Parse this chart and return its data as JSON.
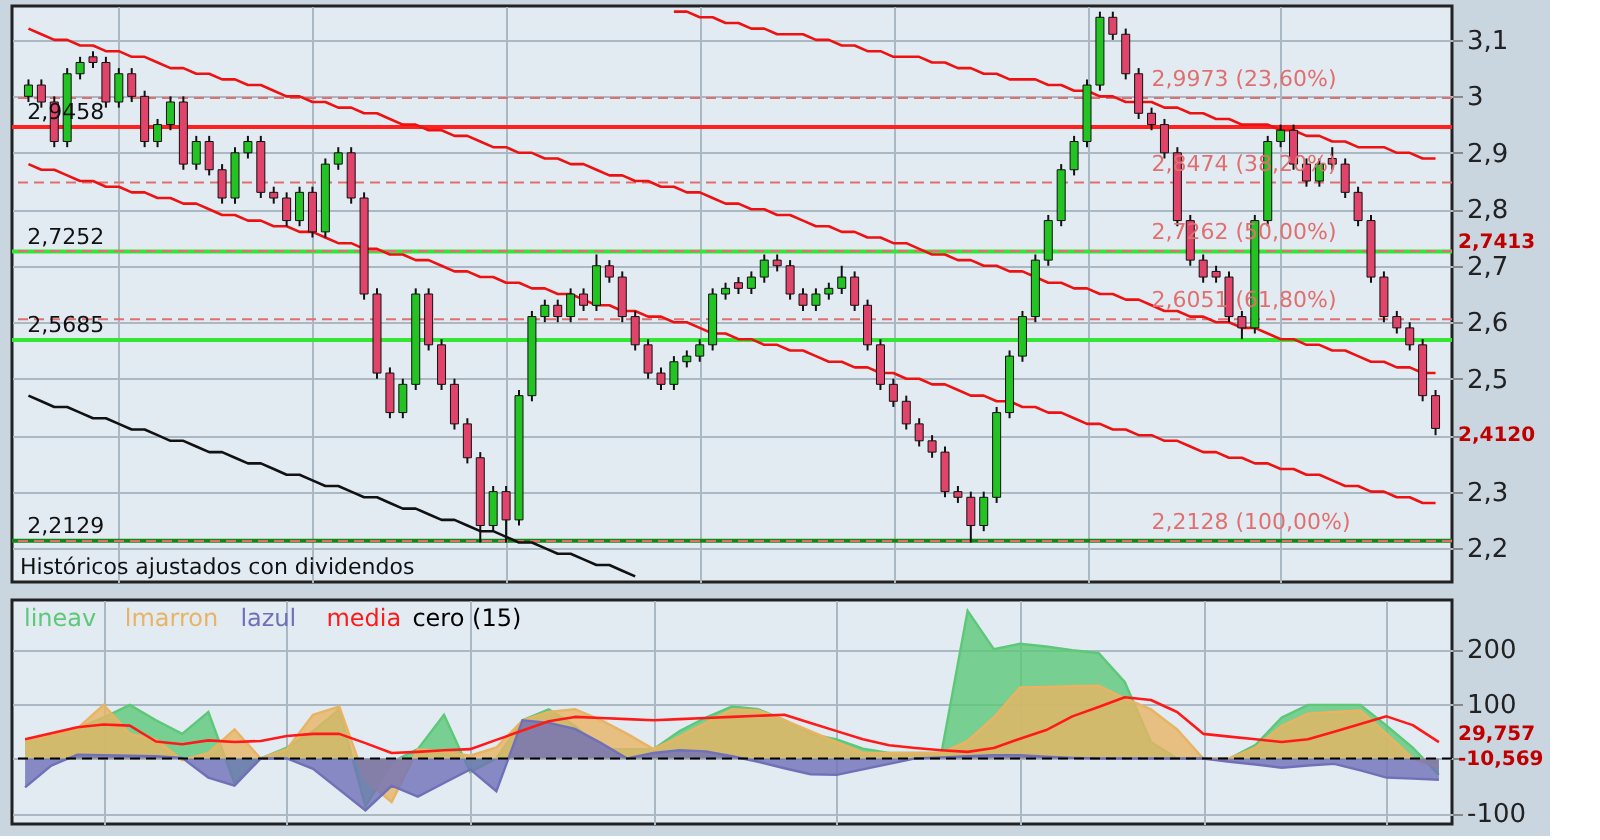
{
  "chart_data": [
    {
      "type": "candlestick",
      "tick_labels": "y",
      "grid": true,
      "categories": [
        null,
        null,
        null,
        null,
        null,
        null,
        null,
        null,
        null,
        null,
        null,
        null,
        null,
        null,
        null,
        null,
        null,
        null,
        null,
        null,
        null,
        null,
        null,
        null,
        null,
        null,
        null,
        null,
        null,
        null,
        null,
        null,
        null,
        null,
        null,
        null,
        null,
        null,
        null,
        null,
        null,
        null,
        null,
        null,
        null,
        null,
        null,
        null,
        null,
        null,
        null,
        null,
        null,
        null,
        null,
        null,
        null,
        null,
        null,
        null,
        null,
        null,
        null,
        null,
        null,
        null,
        null,
        null,
        null,
        null,
        null,
        null,
        null,
        null,
        null,
        null,
        null,
        null,
        null,
        null,
        null,
        null,
        null,
        null,
        null,
        null,
        null,
        null,
        null,
        null,
        null,
        null,
        null,
        null,
        null,
        null,
        null,
        null,
        null,
        null,
        null,
        null,
        null,
        null,
        null,
        null,
        null,
        null,
        null,
        null
      ],
      "ohlc": [
        [
          3.0,
          3.03,
          2.99,
          3.02
        ],
        [
          3.02,
          3.03,
          2.98,
          2.99
        ],
        [
          2.99,
          3.0,
          2.91,
          2.92
        ],
        [
          2.92,
          3.05,
          2.91,
          3.04
        ],
        [
          3.04,
          3.07,
          3.03,
          3.06
        ],
        [
          3.07,
          3.08,
          3.05,
          3.06
        ],
        [
          3.06,
          3.07,
          2.98,
          2.99
        ],
        [
          2.99,
          3.05,
          2.98,
          3.04
        ],
        [
          3.04,
          3.05,
          2.99,
          3.0
        ],
        [
          3.0,
          3.01,
          2.91,
          2.92
        ],
        [
          2.92,
          2.96,
          2.91,
          2.95
        ],
        [
          2.95,
          3.0,
          2.94,
          2.99
        ],
        [
          2.99,
          3.0,
          2.87,
          2.88
        ],
        [
          2.88,
          2.93,
          2.87,
          2.92
        ],
        [
          2.92,
          2.93,
          2.86,
          2.87
        ],
        [
          2.87,
          2.88,
          2.81,
          2.82
        ],
        [
          2.82,
          2.91,
          2.81,
          2.9
        ],
        [
          2.9,
          2.93,
          2.89,
          2.92
        ],
        [
          2.92,
          2.93,
          2.82,
          2.83
        ],
        [
          2.83,
          2.84,
          2.81,
          2.82
        ],
        [
          2.82,
          2.83,
          2.77,
          2.78
        ],
        [
          2.78,
          2.84,
          2.77,
          2.83
        ],
        [
          2.83,
          2.84,
          2.75,
          2.76
        ],
        [
          2.76,
          2.89,
          2.75,
          2.88
        ],
        [
          2.88,
          2.91,
          2.87,
          2.9
        ],
        [
          2.9,
          2.91,
          2.81,
          2.82
        ],
        [
          2.82,
          2.83,
          2.64,
          2.65
        ],
        [
          2.65,
          2.66,
          2.5,
          2.51
        ],
        [
          2.51,
          2.52,
          2.43,
          2.44
        ],
        [
          2.44,
          2.5,
          2.43,
          2.49
        ],
        [
          2.49,
          2.66,
          2.48,
          2.65
        ],
        [
          2.65,
          2.66,
          2.55,
          2.56
        ],
        [
          2.56,
          2.57,
          2.48,
          2.49
        ],
        [
          2.49,
          2.5,
          2.41,
          2.42
        ],
        [
          2.42,
          2.43,
          2.35,
          2.36
        ],
        [
          2.36,
          2.37,
          2.21,
          2.24
        ],
        [
          2.24,
          2.31,
          2.23,
          2.3
        ],
        [
          2.3,
          2.31,
          2.21,
          2.25
        ],
        [
          2.25,
          2.48,
          2.24,
          2.47
        ],
        [
          2.47,
          2.62,
          2.46,
          2.61
        ],
        [
          2.61,
          2.64,
          2.6,
          2.63
        ],
        [
          2.63,
          2.64,
          2.6,
          2.61
        ],
        [
          2.61,
          2.66,
          2.6,
          2.65
        ],
        [
          2.65,
          2.66,
          2.62,
          2.63
        ],
        [
          2.63,
          2.72,
          2.62,
          2.7
        ],
        [
          2.7,
          2.71,
          2.67,
          2.68
        ],
        [
          2.68,
          2.69,
          2.6,
          2.61
        ],
        [
          2.61,
          2.62,
          2.55,
          2.56
        ],
        [
          2.56,
          2.57,
          2.5,
          2.51
        ],
        [
          2.51,
          2.52,
          2.48,
          2.49
        ],
        [
          2.49,
          2.54,
          2.48,
          2.53
        ],
        [
          2.53,
          2.55,
          2.52,
          2.54
        ],
        [
          2.54,
          2.57,
          2.53,
          2.56
        ],
        [
          2.56,
          2.66,
          2.55,
          2.65
        ],
        [
          2.65,
          2.67,
          2.64,
          2.66
        ],
        [
          2.67,
          2.68,
          2.65,
          2.66
        ],
        [
          2.66,
          2.69,
          2.65,
          2.68
        ],
        [
          2.68,
          2.72,
          2.67,
          2.71
        ],
        [
          2.71,
          2.72,
          2.69,
          2.7
        ],
        [
          2.7,
          2.71,
          2.64,
          2.65
        ],
        [
          2.65,
          2.66,
          2.62,
          2.63
        ],
        [
          2.63,
          2.66,
          2.62,
          2.65
        ],
        [
          2.65,
          2.67,
          2.64,
          2.66
        ],
        [
          2.66,
          2.7,
          2.65,
          2.68
        ],
        [
          2.68,
          2.69,
          2.62,
          2.63
        ],
        [
          2.63,
          2.64,
          2.55,
          2.56
        ],
        [
          2.56,
          2.57,
          2.48,
          2.49
        ],
        [
          2.49,
          2.5,
          2.45,
          2.46
        ],
        [
          2.46,
          2.47,
          2.41,
          2.42
        ],
        [
          2.42,
          2.43,
          2.38,
          2.39
        ],
        [
          2.39,
          2.4,
          2.36,
          2.37
        ],
        [
          2.37,
          2.38,
          2.29,
          2.3
        ],
        [
          2.3,
          2.31,
          2.28,
          2.29
        ],
        [
          2.29,
          2.3,
          2.21,
          2.24
        ],
        [
          2.24,
          2.3,
          2.23,
          2.29
        ],
        [
          2.29,
          2.45,
          2.28,
          2.44
        ],
        [
          2.44,
          2.55,
          2.43,
          2.54
        ],
        [
          2.54,
          2.62,
          2.53,
          2.61
        ],
        [
          2.61,
          2.72,
          2.6,
          2.71
        ],
        [
          2.71,
          2.79,
          2.7,
          2.78
        ],
        [
          2.78,
          2.88,
          2.77,
          2.87
        ],
        [
          2.87,
          2.93,
          2.86,
          2.92
        ],
        [
          2.92,
          3.03,
          2.91,
          3.02
        ],
        [
          3.02,
          3.15,
          3.01,
          3.14
        ],
        [
          3.14,
          3.15,
          3.1,
          3.11
        ],
        [
          3.11,
          3.12,
          3.03,
          3.04
        ],
        [
          3.04,
          3.05,
          2.96,
          2.97
        ],
        [
          2.97,
          2.98,
          2.94,
          2.95
        ],
        [
          2.95,
          2.96,
          2.89,
          2.9
        ],
        [
          2.9,
          2.91,
          2.77,
          2.78
        ],
        [
          2.78,
          2.79,
          2.7,
          2.71
        ],
        [
          2.71,
          2.72,
          2.67,
          2.68
        ],
        [
          2.69,
          2.7,
          2.67,
          2.68
        ],
        [
          2.68,
          2.69,
          2.6,
          2.61
        ],
        [
          2.61,
          2.62,
          2.57,
          2.59
        ],
        [
          2.59,
          2.79,
          2.58,
          2.78
        ],
        [
          2.78,
          2.93,
          2.77,
          2.92
        ],
        [
          2.92,
          2.95,
          2.91,
          2.94
        ],
        [
          2.94,
          2.95,
          2.87,
          2.88
        ],
        [
          2.88,
          2.89,
          2.84,
          2.85
        ],
        [
          2.85,
          2.89,
          2.84,
          2.88
        ],
        [
          2.89,
          2.91,
          2.87,
          2.88
        ],
        [
          2.88,
          2.89,
          2.82,
          2.83
        ],
        [
          2.83,
          2.84,
          2.77,
          2.78
        ],
        [
          2.78,
          2.79,
          2.67,
          2.68
        ],
        [
          2.68,
          2.69,
          2.6,
          2.61
        ],
        [
          2.61,
          2.62,
          2.58,
          2.59
        ],
        [
          2.59,
          2.6,
          2.55,
          2.56
        ],
        [
          2.56,
          2.57,
          2.46,
          2.47
        ],
        [
          2.47,
          2.48,
          2.4,
          2.412
        ]
      ],
      "colors": [
        "#22c322",
        "#e0446a",
        "#e0446a",
        "#22c322",
        "#22c322",
        "#e0446a",
        "#e0446a",
        "#22c322",
        "#e0446a",
        "#e0446a",
        "#22c322",
        "#22c322",
        "#e0446a",
        "#22c322",
        "#e0446a",
        "#e0446a",
        "#22c322",
        "#22c322",
        "#e0446a",
        "#e0446a",
        "#e0446a",
        "#22c322",
        "#e0446a",
        "#22c322",
        "#22c322",
        "#e0446a",
        "#e0446a",
        "#e0446a",
        "#e0446a",
        "#22c322",
        "#22c322",
        "#e0446a",
        "#e0446a",
        "#e0446a",
        "#e0446a",
        "#e0446a",
        "#22c322",
        "#e0446a",
        "#22c322",
        "#22c322",
        "#22c322",
        "#e0446a",
        "#22c322",
        "#e0446a",
        "#22c322",
        "#e0446a",
        "#e0446a",
        "#e0446a",
        "#e0446a",
        "#e0446a",
        "#22c322",
        "#22c322",
        "#22c322",
        "#22c322",
        "#22c322",
        "#e0446a",
        "#22c322",
        "#22c322",
        "#e0446a",
        "#e0446a",
        "#e0446a",
        "#22c322",
        "#22c322",
        "#22c322",
        "#e0446a",
        "#e0446a",
        "#e0446a",
        "#e0446a",
        "#e0446a",
        "#e0446a",
        "#e0446a",
        "#e0446a",
        "#e0446a",
        "#e0446a",
        "#22c322",
        "#22c322",
        "#22c322",
        "#22c322",
        "#22c322",
        "#22c322",
        "#22c322",
        "#22c322",
        "#22c322",
        "#22c322",
        "#e0446a",
        "#e0446a",
        "#e0446a",
        "#e0446a",
        "#e0446a",
        "#e0446a",
        "#e0446a",
        "#e0446a",
        "#e0446a",
        "#e0446a",
        "#e0446a",
        "#22c322",
        "#22c322",
        "#22c322",
        "#e0446a",
        "#e0446a",
        "#22c322",
        "#e0446a",
        "#e0446a",
        "#e0446a",
        "#e0446a",
        "#e0446a",
        "#e0446a",
        "#e0446a",
        "#e0446a",
        "#e0446a"
      ],
      "series": [
        {
          "type": "line",
          "color": "#ee1111",
          "values": [
            null,
            null,
            null,
            null,
            null,
            null,
            null,
            null,
            null,
            null,
            null,
            null,
            null,
            null,
            null,
            null,
            null,
            null,
            null,
            null,
            null,
            null,
            null,
            null,
            null,
            null,
            null,
            null,
            null,
            null,
            null,
            null,
            null,
            null,
            null,
            null,
            null,
            null,
            null,
            null,
            null,
            null,
            null,
            null,
            null,
            null,
            null,
            null,
            null,
            null,
            3.15,
            3.15,
            3.14,
            3.14,
            3.13,
            3.13,
            3.12,
            3.12,
            3.11,
            3.11,
            3.11,
            3.1,
            3.1,
            3.09,
            3.09,
            3.08,
            3.08,
            3.07,
            3.07,
            3.07,
            3.06,
            3.06,
            3.05,
            3.05,
            3.04,
            3.04,
            3.03,
            3.03,
            3.03,
            3.02,
            3.02,
            3.01,
            3.01,
            3.0,
            3.0,
            2.99,
            2.99,
            2.99,
            2.98,
            2.98,
            2.97,
            2.97,
            2.96,
            2.96,
            2.95,
            2.95,
            2.95,
            2.94,
            2.94,
            2.93,
            2.93,
            2.92,
            2.92,
            2.91,
            2.91,
            2.91,
            2.9,
            2.9,
            2.89,
            2.89
          ]
        },
        {
          "type": "line",
          "color": "#ee1111",
          "values": [
            3.12,
            3.11,
            3.1,
            3.1,
            3.09,
            3.09,
            3.08,
            3.08,
            3.07,
            3.07,
            3.06,
            3.05,
            3.05,
            3.04,
            3.04,
            3.03,
            3.03,
            3.02,
            3.02,
            3.01,
            3.0,
            3.0,
            2.99,
            2.99,
            2.98,
            2.98,
            2.97,
            2.97,
            2.96,
            2.95,
            2.95,
            2.94,
            2.94,
            2.93,
            2.93,
            2.92,
            2.91,
            2.91,
            2.9,
            2.9,
            2.89,
            2.89,
            2.88,
            2.88,
            2.87,
            2.86,
            2.86,
            2.85,
            2.85,
            2.84,
            2.84,
            2.83,
            2.83,
            2.82,
            2.81,
            2.81,
            2.8,
            2.8,
            2.79,
            2.79,
            2.78,
            2.77,
            2.77,
            2.76,
            2.76,
            2.75,
            2.75,
            2.74,
            2.74,
            2.73,
            2.72,
            2.72,
            2.71,
            2.71,
            2.7,
            2.7,
            2.69,
            2.69,
            2.68,
            2.67,
            2.67,
            2.66,
            2.66,
            2.65,
            2.65,
            2.64,
            2.64,
            2.63,
            2.62,
            2.62,
            2.61,
            2.61,
            2.6,
            2.6,
            2.59,
            2.59,
            2.58,
            2.57,
            2.57,
            2.56,
            2.56,
            2.55,
            2.55,
            2.54,
            2.53,
            2.53,
            2.52,
            2.52,
            2.51,
            2.51
          ]
        },
        {
          "type": "line",
          "color": "#ee1111",
          "values": [
            2.88,
            2.87,
            2.87,
            2.86,
            2.85,
            2.85,
            2.84,
            2.84,
            2.83,
            2.83,
            2.82,
            2.82,
            2.81,
            2.81,
            2.8,
            2.79,
            2.79,
            2.78,
            2.78,
            2.77,
            2.77,
            2.76,
            2.76,
            2.75,
            2.74,
            2.74,
            2.73,
            2.73,
            2.72,
            2.72,
            2.71,
            2.71,
            2.7,
            2.69,
            2.69,
            2.68,
            2.68,
            2.67,
            2.67,
            2.66,
            2.66,
            2.65,
            2.65,
            2.64,
            2.63,
            2.63,
            2.62,
            2.62,
            2.61,
            2.61,
            2.6,
            2.6,
            2.59,
            2.58,
            2.58,
            2.57,
            2.57,
            2.56,
            2.56,
            2.55,
            2.55,
            2.54,
            2.53,
            2.53,
            2.52,
            2.52,
            2.51,
            2.51,
            2.5,
            2.5,
            2.49,
            2.49,
            2.48,
            2.47,
            2.47,
            2.46,
            2.46,
            2.45,
            2.45,
            2.44,
            2.44,
            2.43,
            2.42,
            2.42,
            2.41,
            2.41,
            2.4,
            2.4,
            2.39,
            2.39,
            2.38,
            2.37,
            2.37,
            2.36,
            2.36,
            2.35,
            2.35,
            2.34,
            2.34,
            2.33,
            2.33,
            2.32,
            2.31,
            2.31,
            2.3,
            2.3,
            2.29,
            2.29,
            2.28,
            2.28
          ]
        },
        {
          "type": "line",
          "color": "#111111",
          "values": [
            2.47,
            2.46,
            2.45,
            2.45,
            2.44,
            2.43,
            2.43,
            2.42,
            2.41,
            2.41,
            2.4,
            2.39,
            2.39,
            2.38,
            2.37,
            2.37,
            2.36,
            2.35,
            2.35,
            2.34,
            2.33,
            2.33,
            2.32,
            2.31,
            2.31,
            2.3,
            2.29,
            2.29,
            2.28,
            2.27,
            2.27,
            2.26,
            2.25,
            2.25,
            2.24,
            2.23,
            2.23,
            2.22,
            2.21,
            2.21,
            2.2,
            2.19,
            2.19,
            2.18,
            2.17,
            2.17,
            2.16,
            2.15,
            null,
            null,
            null,
            null,
            null,
            null,
            null,
            null,
            null,
            null,
            null,
            null,
            null,
            null,
            null,
            null,
            null,
            null,
            null,
            null,
            null,
            null,
            null,
            null,
            null,
            null,
            null,
            null,
            null,
            null,
            null,
            null,
            null,
            null,
            null,
            null,
            null,
            null,
            null,
            null,
            null,
            null,
            null,
            null,
            null,
            null,
            null,
            null,
            null,
            null,
            null,
            null,
            null,
            null,
            null,
            null,
            null,
            null,
            null,
            null,
            null,
            null
          ]
        }
      ],
      "ylim": [
        2.14,
        3.16
      ],
      "yticks": [
        {
          "value": 2.2,
          "label": "2,2"
        },
        {
          "value": 2.3,
          "label": "2,3"
        },
        {
          "value": 2.4,
          "label": null
        },
        {
          "value": 2.5,
          "label": "2,5"
        },
        {
          "value": 2.6,
          "label": "2,6"
        },
        {
          "value": 2.7,
          "label": "2,7"
        },
        {
          "value": 2.8,
          "label": "2,8"
        },
        {
          "value": 2.9,
          "label": "2,9"
        },
        {
          "value": 3,
          "label": "3"
        },
        {
          "value": 3.1,
          "label": "3,1"
        }
      ],
      "ref_lines": [
        {
          "axis": "y",
          "value": 2.9458,
          "label": "2,9458",
          "color": "#ff2020",
          "line_style": "solid"
        },
        {
          "axis": "y",
          "value": 2.7252,
          "label": "2,7252",
          "color": "#33e633",
          "line_style": "solid"
        },
        {
          "axis": "y",
          "value": 2.5685,
          "label": "2,5685",
          "color": "#33e633",
          "line_style": "solid"
        },
        {
          "axis": "y",
          "value": 2.2129,
          "label": "2,2129",
          "color": "#118811",
          "line_style": "solid"
        },
        {
          "axis": "y",
          "value": 2.9973,
          "color": "#e07070",
          "line_style": "dashed"
        },
        {
          "axis": "y",
          "value": 2.8474,
          "color": "#e07070",
          "line_style": "dashed"
        },
        {
          "axis": "y",
          "value": 2.7262,
          "color": "#e07070",
          "line_style": "dashed"
        },
        {
          "axis": "y",
          "value": 2.6051,
          "color": "#e07070",
          "line_style": "dashed"
        },
        {
          "axis": "y",
          "value": 2.2128,
          "color": "#e07070",
          "line_style": "dashed"
        }
      ],
      "annotations": [
        "Históricos ajustados con dividendos",
        {
          "text": "2,9973 (23,60%)",
          "y": 2.9973
        },
        {
          "text": "2,8474 (38,20%)",
          "y": 2.8474
        },
        {
          "text": "2,7262 (50,00%)",
          "y": 2.7262
        },
        {
          "text": "2,6051 (61,80%)",
          "y": 2.6051
        },
        {
          "text": "2,2128 (100,00%)",
          "y": 2.2128
        },
        "2,7413",
        "2,4120"
      ]
    },
    {
      "type": "area",
      "tick_labels": "y",
      "grid": true,
      "categories": [
        null,
        null,
        null,
        null,
        null,
        null,
        null,
        null,
        null,
        null,
        null,
        null,
        null,
        null,
        null,
        null,
        null,
        null,
        null,
        null,
        null,
        null,
        null,
        null,
        null,
        null,
        null,
        null,
        null,
        null,
        null,
        null,
        null,
        null,
        null,
        null,
        null,
        null,
        null,
        null,
        null,
        null,
        null,
        null,
        null,
        null,
        null,
        null,
        null,
        null,
        null,
        null,
        null,
        null,
        null
      ],
      "series": [
        {
          "name": "lineav",
          "type": "area",
          "color": "#5cc878",
          "values": [
            35,
            42,
            55,
            75,
            98,
            70,
            45,
            85,
            -45,
            0,
            20,
            50,
            90,
            -88,
            -7,
            17,
            80,
            -25,
            0,
            70,
            90,
            60,
            17,
            17,
            17,
            50,
            75,
            95,
            90,
            70,
            45,
            35,
            18,
            10,
            10,
            10,
            270,
            200,
            210,
            205,
            198,
            193,
            140,
            30,
            0,
            0,
            0,
            25,
            75,
            98,
            98,
            98,
            60,
            20,
            -30
          ]
        },
        {
          "name": "lmarron",
          "type": "area",
          "color": "#e8b464",
          "values": [
            35,
            42,
            55,
            98,
            45,
            35,
            -3,
            10,
            53,
            0,
            17,
            80,
            95,
            -40,
            -80,
            17,
            13,
            5,
            20,
            70,
            85,
            90,
            70,
            45,
            17,
            40,
            65,
            90,
            88,
            70,
            50,
            30,
            10,
            10,
            10,
            10,
            32,
            75,
            130,
            131,
            132,
            133,
            110,
            90,
            53,
            0,
            0,
            20,
            60,
            82,
            85,
            88,
            45,
            0,
            -17
          ]
        },
        {
          "name": "lazul",
          "type": "area",
          "color": "#7070b8",
          "values": [
            -53,
            -13,
            7,
            6,
            5,
            4,
            1,
            -35,
            -50,
            0,
            0,
            -19,
            -57,
            -95,
            -50,
            -70,
            -45,
            -20,
            -60,
            70,
            65,
            54,
            28,
            0,
            10,
            15,
            13,
            4,
            -6,
            -18,
            -29,
            -30,
            -20,
            -10,
            0,
            2,
            4,
            6,
            6,
            3,
            1,
            0,
            0,
            0,
            0,
            0,
            -6,
            -11,
            -17,
            -13,
            -10,
            -22,
            -35,
            -37,
            -39
          ]
        },
        {
          "name": "media",
          "type": "line",
          "color": "#ff1a1a",
          "values": [
            35,
            46,
            57,
            62,
            60,
            31,
            26,
            33,
            30,
            32,
            41,
            45,
            45,
            28,
            10,
            12,
            15,
            17,
            34,
            51,
            68,
            76,
            74,
            72,
            70,
            72,
            74,
            76,
            78,
            80,
            65,
            50,
            35,
            24,
            19,
            15,
            12,
            19,
            36,
            52,
            77,
            94,
            112,
            107,
            85,
            45,
            40,
            35,
            30,
            35,
            49,
            63,
            77,
            61,
            30
          ]
        }
      ],
      "ref_lines": [
        {
          "axis": "y",
          "value": 0,
          "label": "cero (15)",
          "color": "#000000",
          "line_style": "dashed"
        }
      ],
      "ylim": [
        -120,
        290
      ],
      "yticks": [
        {
          "value": -100,
          "label": "-100"
        },
        {
          "value": 0,
          "label": null
        },
        {
          "value": 100,
          "label": "100"
        },
        {
          "value": 200,
          "label": "200"
        }
      ],
      "annotations": [
        "29,757",
        "-10,569"
      ]
    }
  ]
}
